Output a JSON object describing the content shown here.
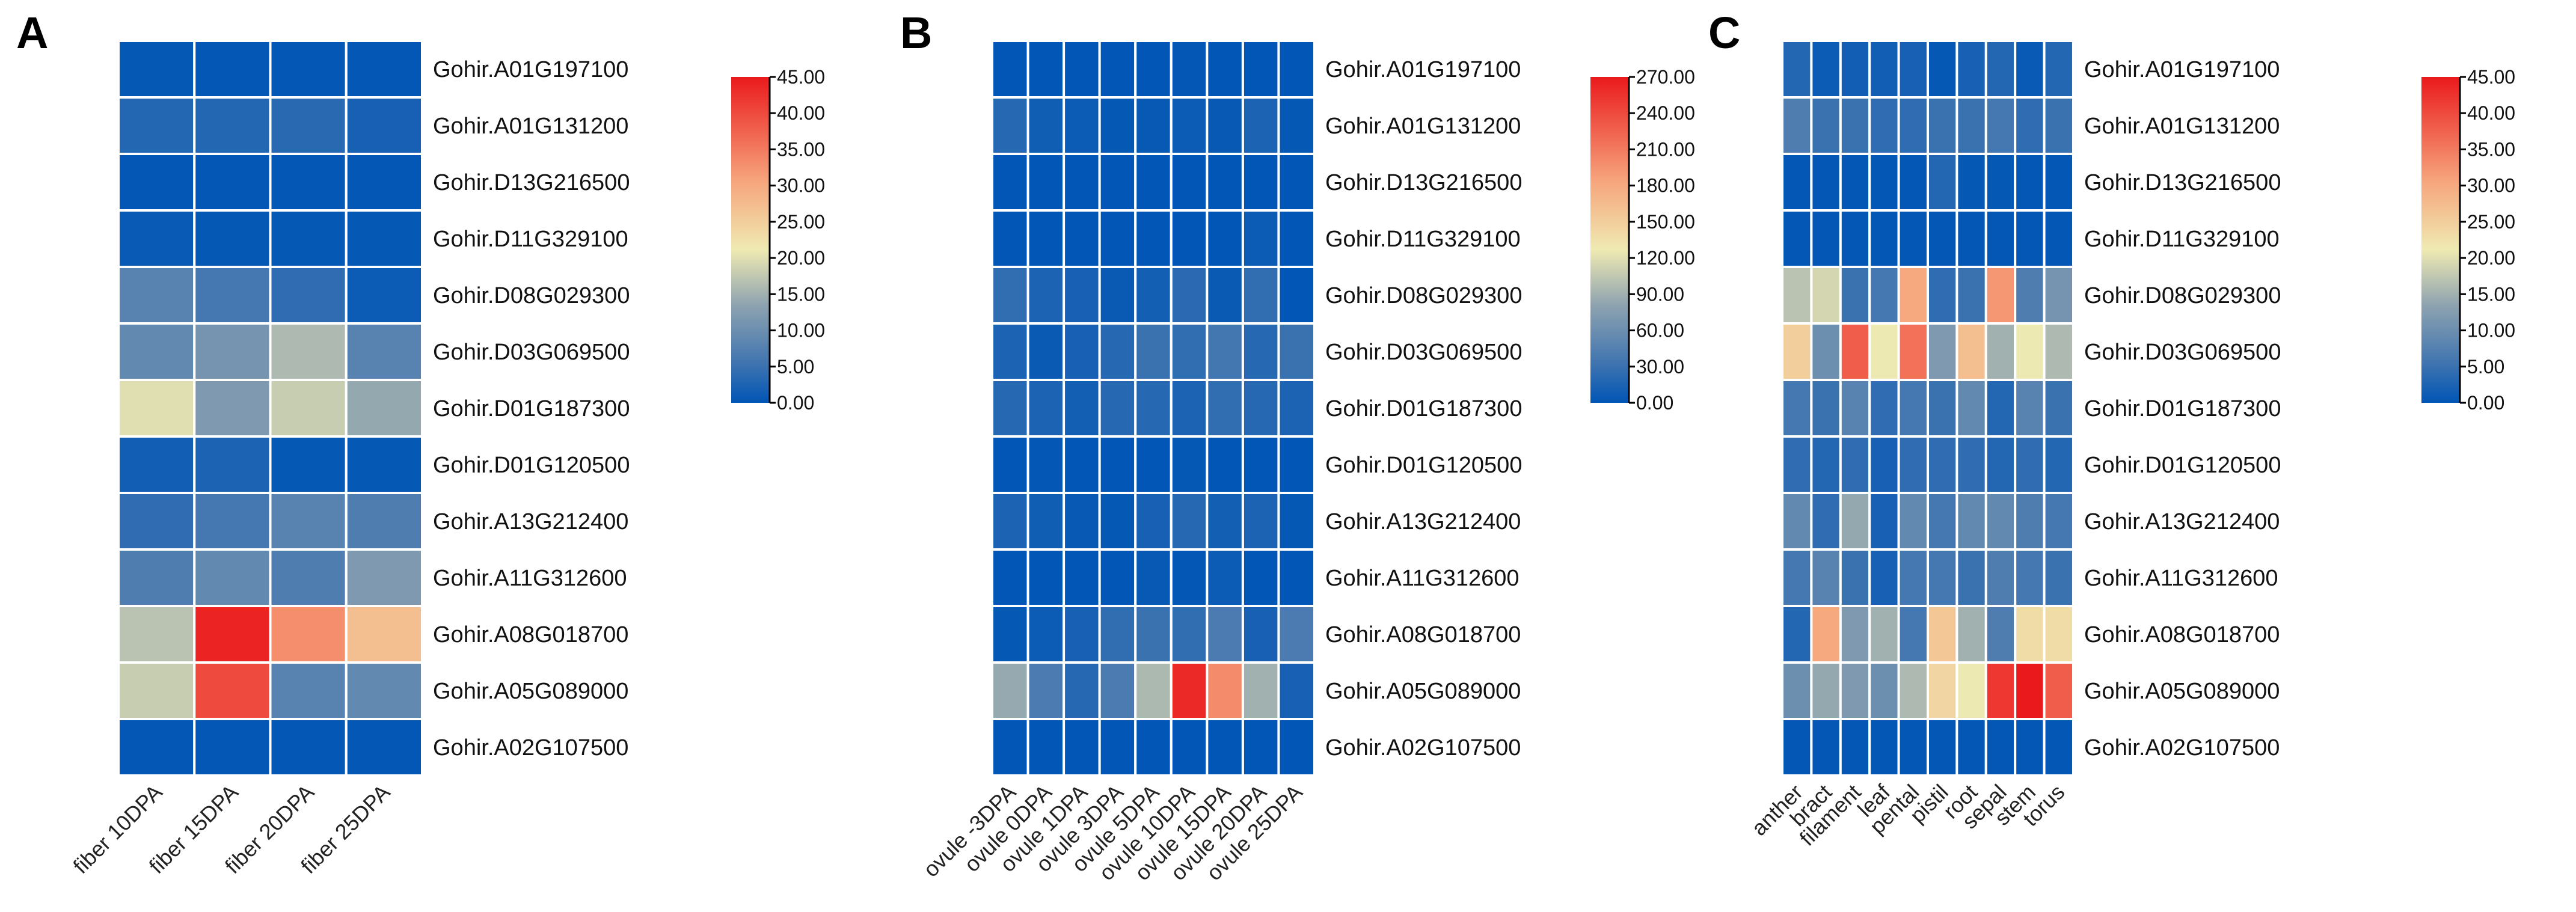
{
  "colors": {
    "scale": [
      "#0055b5",
      "#3f74b0",
      "#8ea3b0",
      "#efeab2",
      "#f6a57c",
      "#ea1a1c"
    ],
    "grid_line": "#ffffff"
  },
  "chart_data": [
    {
      "type": "heatmap",
      "panel_label": "A",
      "rows": [
        "Gohir.A01G197100",
        "Gohir.A01G131200",
        "Gohir.D13G216500",
        "Gohir.D11G329100",
        "Gohir.D08G029300",
        "Gohir.D03G069500",
        "Gohir.D01G187300",
        "Gohir.D01G120500",
        "Gohir.A13G212400",
        "Gohir.A11G312600",
        "Gohir.A08G018700",
        "Gohir.A05G089000",
        "Gohir.A02G107500"
      ],
      "columns": [
        "fiber 10DPA",
        "fiber 15DPA",
        "fiber 20DPA",
        "fiber 25DPA"
      ],
      "values": [
        [
          0.5,
          0.3,
          0.3,
          0.3
        ],
        [
          3,
          3,
          3.5,
          2
        ],
        [
          0.3,
          0.3,
          0.3,
          0.3
        ],
        [
          0.8,
          0.5,
          0.5,
          0.5
        ],
        [
          8,
          6,
          4,
          1
        ],
        [
          9,
          11,
          16,
          8
        ],
        [
          20,
          12,
          18,
          14
        ],
        [
          1.5,
          2.5,
          0.5,
          0.5
        ],
        [
          4,
          6,
          8,
          7
        ],
        [
          7,
          9,
          7,
          12
        ],
        [
          17,
          44,
          33,
          27
        ],
        [
          18,
          40,
          8,
          9
        ],
        [
          0.3,
          0.3,
          0.3,
          0.3
        ]
      ],
      "scale_range": [
        0,
        45
      ],
      "legend_ticks": [
        "45.00",
        "40.00",
        "35.00",
        "30.00",
        "25.00",
        "20.00",
        "15.00",
        "10.00",
        "5.00",
        "0.00"
      ],
      "legend_placement": "right"
    },
    {
      "type": "heatmap",
      "panel_label": "B",
      "rows": [
        "Gohir.A01G197100",
        "Gohir.A01G131200",
        "Gohir.D13G216500",
        "Gohir.D11G329100",
        "Gohir.D08G029300",
        "Gohir.D03G069500",
        "Gohir.D01G187300",
        "Gohir.D01G120500",
        "Gohir.A13G212400",
        "Gohir.A11G312600",
        "Gohir.A08G018700",
        "Gohir.A05G089000",
        "Gohir.A02G107500"
      ],
      "columns": [
        "ovule -3DPA",
        "ovule 0DPA",
        "ovule 1DPA",
        "ovule 3DPA",
        "ovule 5DPA",
        "ovule 10DPA",
        "ovule 15DPA",
        "ovule 20DPA",
        "ovule 25DPA"
      ],
      "values": [
        [
          1,
          1,
          1,
          1,
          1,
          2,
          1,
          1,
          1
        ],
        [
          20,
          8,
          6,
          3,
          4,
          6,
          4,
          15,
          3
        ],
        [
          1,
          1,
          1,
          1,
          1,
          1,
          1,
          1,
          1
        ],
        [
          1,
          1,
          1,
          1,
          1,
          1,
          1,
          6,
          1
        ],
        [
          25,
          15,
          12,
          5,
          10,
          22,
          5,
          25,
          1
        ],
        [
          15,
          5,
          12,
          20,
          30,
          25,
          35,
          20,
          30
        ],
        [
          20,
          15,
          10,
          20,
          20,
          15,
          25,
          20,
          15
        ],
        [
          1,
          2,
          1,
          1,
          1,
          3,
          1,
          1,
          1
        ],
        [
          15,
          8,
          4,
          3,
          12,
          20,
          10,
          15,
          3
        ],
        [
          1,
          1,
          1,
          1,
          4,
          2,
          6,
          1,
          1
        ],
        [
          3,
          6,
          12,
          25,
          30,
          25,
          40,
          12,
          40
        ],
        [
          85,
          40,
          20,
          40,
          95,
          260,
          200,
          90,
          12
        ],
        [
          1,
          1,
          1,
          1,
          1,
          1,
          1,
          1,
          1
        ]
      ],
      "scale_range": [
        0,
        270
      ],
      "legend_ticks": [
        "270.00",
        "240.00",
        "210.00",
        "180.00",
        "150.00",
        "120.00",
        "90.00",
        "60.00",
        "30.00",
        "0.00"
      ],
      "legend_placement": "right"
    },
    {
      "type": "heatmap",
      "panel_label": "C",
      "rows": [
        "Gohir.A01G197100",
        "Gohir.A01G131200",
        "Gohir.D13G216500",
        "Gohir.D11G329100",
        "Gohir.D08G029300",
        "Gohir.D03G069500",
        "Gohir.D01G187300",
        "Gohir.D01G120500",
        "Gohir.A13G212400",
        "Gohir.A11G312600",
        "Gohir.A08G018700",
        "Gohir.A05G089000",
        "Gohir.A02G107500"
      ],
      "columns": [
        "anther",
        "bract",
        "filament",
        "leaf",
        "pental",
        "pistil",
        "root",
        "sepal",
        "stem",
        "torus"
      ],
      "values": [
        [
          3,
          1,
          1.5,
          1.5,
          2,
          0.5,
          2,
          3,
          0.8,
          3
        ],
        [
          7,
          5,
          5,
          4,
          4,
          5,
          5,
          6,
          4,
          5
        ],
        [
          0.3,
          0.3,
          0.3,
          0.3,
          0.3,
          3,
          0.5,
          0.5,
          0.3,
          0.3
        ],
        [
          0.3,
          0.3,
          0.3,
          0.3,
          0.3,
          0.3,
          0.3,
          0.3,
          0.3,
          0.3
        ],
        [
          17,
          19,
          5,
          6,
          30,
          4,
          5,
          32,
          7,
          11
        ],
        [
          25,
          10,
          38,
          21,
          36,
          12,
          27,
          15,
          21,
          16
        ],
        [
          6,
          5,
          8,
          4,
          6,
          5,
          9,
          3,
          8,
          5
        ],
        [
          4,
          3,
          4,
          2,
          4,
          4,
          4,
          3,
          4,
          3
        ],
        [
          9,
          4,
          14,
          2,
          9,
          6,
          9,
          9,
          7,
          6
        ],
        [
          6,
          8,
          5,
          2,
          6,
          6,
          5,
          7,
          6,
          5
        ],
        [
          3,
          30,
          12,
          15,
          6,
          26,
          15,
          7,
          23,
          23
        ],
        [
          10,
          14,
          12,
          10,
          16,
          24,
          21,
          42,
          45,
          38
        ],
        [
          0.3,
          0.3,
          0.3,
          0.3,
          0.3,
          0.3,
          0.3,
          0.3,
          0.3,
          0.3
        ]
      ],
      "scale_range": [
        0,
        45
      ],
      "legend_ticks": [
        "45.00",
        "40.00",
        "35.00",
        "30.00",
        "25.00",
        "20.00",
        "15.00",
        "10.00",
        "5.00",
        "0.00"
      ],
      "legend_placement": "right"
    }
  ]
}
